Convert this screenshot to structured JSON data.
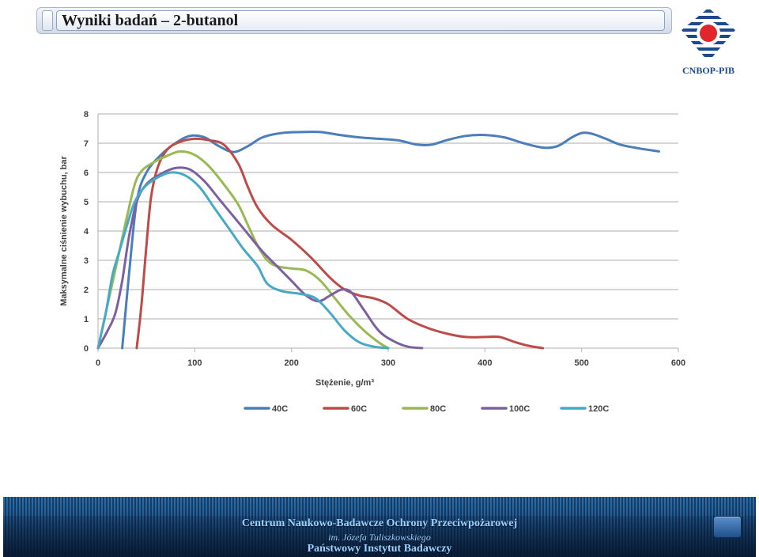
{
  "slide": {
    "title": "Wyniki badań – 2-butanol"
  },
  "logo": {
    "text": "CNBOP-PIB",
    "colors": {
      "blue": "#1d4a8e",
      "red": "#e0262b"
    }
  },
  "footer": {
    "line1": "Centrum Naukowo-Badawcze Ochrony Przeciwpożarowej",
    "line2": "im. Józefa Tuliszkowskiego",
    "line3": "Państwowy Instytut Badawczy"
  },
  "chart_data": {
    "type": "line",
    "xlabel": "Stężenie, g/m³",
    "ylabel": "Maksymalne ciśnienie wybuchu, bar",
    "xlim": [
      0,
      600
    ],
    "ylim": [
      0,
      8
    ],
    "xticks": [
      "0",
      "100",
      "200",
      "300",
      "400",
      "500",
      "600"
    ],
    "yticks": [
      "0",
      "1",
      "2",
      "3",
      "4",
      "5",
      "6",
      "7",
      "8"
    ],
    "grid": "horizontal",
    "legend_position": "bottom",
    "series": [
      {
        "name": "40C",
        "color": "#4a7ebb",
        "points": [
          [
            25,
            0
          ],
          [
            32,
            2.5
          ],
          [
            40,
            5
          ],
          [
            50,
            6
          ],
          [
            65,
            6.6
          ],
          [
            80,
            7.0
          ],
          [
            95,
            7.25
          ],
          [
            110,
            7.2
          ],
          [
            125,
            6.9
          ],
          [
            140,
            6.7
          ],
          [
            155,
            6.9
          ],
          [
            170,
            7.2
          ],
          [
            190,
            7.35
          ],
          [
            210,
            7.38
          ],
          [
            230,
            7.38
          ],
          [
            250,
            7.28
          ],
          [
            270,
            7.2
          ],
          [
            290,
            7.15
          ],
          [
            310,
            7.1
          ],
          [
            330,
            6.95
          ],
          [
            345,
            6.95
          ],
          [
            360,
            7.1
          ],
          [
            380,
            7.25
          ],
          [
            400,
            7.28
          ],
          [
            420,
            7.2
          ],
          [
            440,
            7.0
          ],
          [
            460,
            6.85
          ],
          [
            475,
            6.9
          ],
          [
            490,
            7.2
          ],
          [
            500,
            7.35
          ],
          [
            510,
            7.33
          ],
          [
            525,
            7.15
          ],
          [
            540,
            6.95
          ],
          [
            560,
            6.82
          ],
          [
            580,
            6.72
          ]
        ]
      },
      {
        "name": "60C",
        "color": "#be4b48",
        "points": [
          [
            40,
            0
          ],
          [
            45,
            1.5
          ],
          [
            50,
            3.5
          ],
          [
            55,
            5.2
          ],
          [
            62,
            6.2
          ],
          [
            72,
            6.8
          ],
          [
            85,
            7.05
          ],
          [
            100,
            7.15
          ],
          [
            115,
            7.1
          ],
          [
            130,
            6.95
          ],
          [
            145,
            6.3
          ],
          [
            155,
            5.5
          ],
          [
            165,
            4.8
          ],
          [
            180,
            4.2
          ],
          [
            200,
            3.7
          ],
          [
            220,
            3.1
          ],
          [
            240,
            2.4
          ],
          [
            255,
            2.0
          ],
          [
            270,
            1.8
          ],
          [
            285,
            1.7
          ],
          [
            300,
            1.5
          ],
          [
            320,
            1.0
          ],
          [
            340,
            0.7
          ],
          [
            360,
            0.5
          ],
          [
            380,
            0.38
          ],
          [
            400,
            0.38
          ],
          [
            415,
            0.38
          ],
          [
            430,
            0.22
          ],
          [
            445,
            0.08
          ],
          [
            460,
            0
          ]
        ]
      },
      {
        "name": "80C",
        "color": "#98b954",
        "points": [
          [
            0,
            0
          ],
          [
            10,
            1.5
          ],
          [
            20,
            3.0
          ],
          [
            30,
            4.5
          ],
          [
            38,
            5.6
          ],
          [
            45,
            6.05
          ],
          [
            55,
            6.3
          ],
          [
            70,
            6.55
          ],
          [
            85,
            6.72
          ],
          [
            100,
            6.6
          ],
          [
            115,
            6.2
          ],
          [
            130,
            5.6
          ],
          [
            145,
            4.9
          ],
          [
            155,
            4.2
          ],
          [
            165,
            3.5
          ],
          [
            175,
            3.0
          ],
          [
            185,
            2.8
          ],
          [
            200,
            2.72
          ],
          [
            215,
            2.65
          ],
          [
            230,
            2.3
          ],
          [
            245,
            1.7
          ],
          [
            260,
            1.1
          ],
          [
            275,
            0.6
          ],
          [
            290,
            0.2
          ],
          [
            300,
            0
          ]
        ]
      },
      {
        "name": "100C",
        "color": "#7d60a0",
        "points": [
          [
            0,
            0
          ],
          [
            10,
            0.6
          ],
          [
            18,
            1.2
          ],
          [
            25,
            2.3
          ],
          [
            32,
            3.8
          ],
          [
            40,
            5.0
          ],
          [
            50,
            5.6
          ],
          [
            65,
            5.95
          ],
          [
            80,
            6.15
          ],
          [
            95,
            6.1
          ],
          [
            110,
            5.7
          ],
          [
            125,
            5.1
          ],
          [
            140,
            4.5
          ],
          [
            155,
            3.9
          ],
          [
            170,
            3.3
          ],
          [
            185,
            2.8
          ],
          [
            200,
            2.3
          ],
          [
            215,
            1.8
          ],
          [
            228,
            1.6
          ],
          [
            240,
            1.8
          ],
          [
            252,
            2.0
          ],
          [
            262,
            1.9
          ],
          [
            275,
            1.3
          ],
          [
            290,
            0.6
          ],
          [
            305,
            0.25
          ],
          [
            320,
            0.05
          ],
          [
            335,
            0
          ]
        ]
      },
      {
        "name": "120C",
        "color": "#46aac5",
        "points": [
          [
            0,
            0
          ],
          [
            8,
            1.2
          ],
          [
            15,
            2.5
          ],
          [
            22,
            3.3
          ],
          [
            30,
            4.2
          ],
          [
            38,
            5.0
          ],
          [
            48,
            5.5
          ],
          [
            60,
            5.8
          ],
          [
            75,
            6.0
          ],
          [
            90,
            5.9
          ],
          [
            105,
            5.5
          ],
          [
            120,
            4.8
          ],
          [
            135,
            4.1
          ],
          [
            150,
            3.4
          ],
          [
            165,
            2.8
          ],
          [
            175,
            2.2
          ],
          [
            190,
            1.95
          ],
          [
            210,
            1.85
          ],
          [
            225,
            1.7
          ],
          [
            240,
            1.2
          ],
          [
            255,
            0.6
          ],
          [
            270,
            0.2
          ],
          [
            285,
            0.05
          ],
          [
            300,
            0
          ]
        ]
      }
    ]
  }
}
